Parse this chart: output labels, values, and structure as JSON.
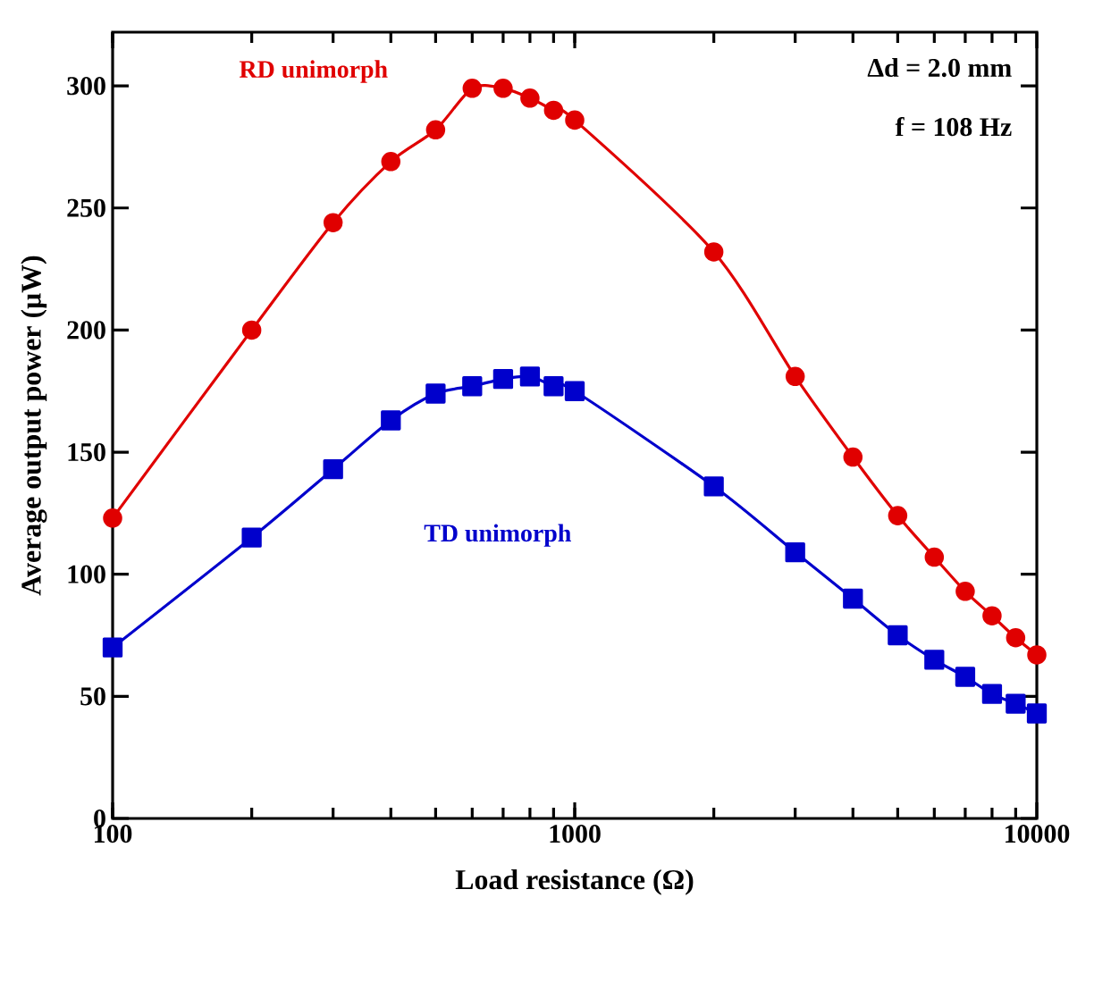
{
  "chart_data": {
    "type": "line",
    "xlabel": "Load resistance (Ω)",
    "ylabel": "Average output power (μW)",
    "log": "x",
    "x": [
      100,
      200,
      300,
      400,
      500,
      600,
      700,
      800,
      900,
      1000,
      2000,
      3000,
      4000,
      5000,
      6000,
      7000,
      8000,
      9000,
      10000
    ],
    "series": [
      {
        "name": "RD unimorph",
        "color": "#e00000",
        "marker": "circle",
        "values": [
          123,
          200,
          244,
          269,
          282,
          299,
          299,
          295,
          290,
          286,
          232,
          181,
          148,
          124,
          107,
          93,
          83,
          74,
          67
        ]
      },
      {
        "name": "TD unimorph",
        "color": "#0000cc",
        "marker": "square",
        "values": [
          70,
          115,
          143,
          163,
          174,
          177,
          180,
          181,
          177,
          175,
          136,
          109,
          90,
          75,
          65,
          58,
          51,
          47,
          43
        ]
      }
    ],
    "xlim": [
      100,
      10000
    ],
    "ylim": [
      0,
      322
    ],
    "xticks": [
      100,
      1000,
      10000
    ],
    "yticks": [
      0,
      50,
      100,
      150,
      200,
      250,
      300
    ],
    "line_style": "solid",
    "grid": false,
    "annotations": [
      "Δd = 2.0 mm",
      "f = 108 Hz"
    ]
  }
}
